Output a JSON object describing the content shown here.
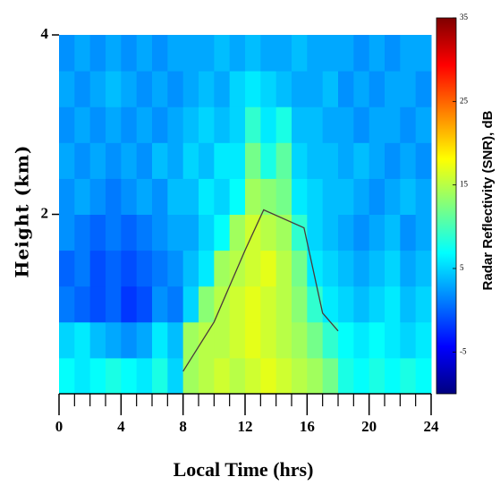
{
  "chart_data": {
    "type": "heatmap",
    "xlabel": "Local Time (hrs)",
    "ylabel": "Height (km)",
    "colorbar_label": "Radar Reflectivity (SNR), dB",
    "xbins": [
      0,
      1,
      2,
      3,
      4,
      5,
      6,
      7,
      8,
      9,
      10,
      11,
      12,
      13,
      14,
      15,
      16,
      17,
      18,
      19,
      20,
      21,
      22,
      23,
      24
    ],
    "ybins": [
      0,
      0.4,
      0.8,
      1.2,
      1.6,
      2.0,
      2.4,
      2.8,
      3.2,
      3.6,
      4.0
    ],
    "z": [
      [
        7,
        6,
        7,
        8,
        7,
        6,
        8,
        5,
        14,
        15,
        16,
        15,
        16,
        17,
        16,
        15,
        14,
        12,
        8,
        7,
        8,
        7,
        8,
        7
      ],
      [
        5,
        6,
        4,
        3,
        2,
        3,
        6,
        4,
        14,
        15,
        15,
        16,
        17,
        16,
        15,
        14,
        12,
        9,
        7,
        6,
        7,
        6,
        5,
        6
      ],
      [
        1,
        0,
        -1,
        0,
        -2,
        -1,
        2,
        1,
        5,
        13,
        15,
        16,
        17,
        16,
        15,
        13,
        9,
        6,
        5,
        4,
        5,
        6,
        4,
        5
      ],
      [
        0,
        1,
        -1,
        0,
        -1,
        0,
        1,
        2,
        4,
        6,
        14,
        15,
        16,
        17,
        15,
        12,
        6,
        5,
        4,
        3,
        4,
        5,
        3,
        4
      ],
      [
        2,
        1,
        0,
        1,
        0,
        1,
        2,
        3,
        3,
        5,
        7,
        14,
        16,
        15,
        14,
        9,
        5,
        4,
        3,
        2,
        3,
        4,
        2,
        3
      ],
      [
        2,
        3,
        2,
        1,
        2,
        3,
        2,
        4,
        4,
        6,
        5,
        7,
        14,
        13,
        12,
        6,
        5,
        4,
        4,
        3,
        2,
        3,
        4,
        3
      ],
      [
        3,
        2,
        3,
        2,
        3,
        2,
        4,
        3,
        5,
        4,
        6,
        6,
        12,
        8,
        11,
        5,
        4,
        4,
        3,
        4,
        3,
        2,
        3,
        2
      ],
      [
        2,
        3,
        2,
        3,
        2,
        3,
        2,
        3,
        4,
        5,
        4,
        5,
        9,
        6,
        8,
        4,
        4,
        3,
        3,
        2,
        3,
        3,
        2,
        3
      ],
      [
        3,
        2,
        3,
        4,
        3,
        2,
        3,
        2,
        3,
        4,
        3,
        5,
        6,
        5,
        4,
        3,
        3,
        4,
        2,
        3,
        2,
        3,
        3,
        2
      ],
      [
        2,
        3,
        2,
        3,
        2,
        3,
        2,
        3,
        3,
        3,
        4,
        3,
        4,
        3,
        3,
        4,
        3,
        3,
        3,
        2,
        3,
        2,
        3,
        3
      ]
    ],
    "colormap": [
      "#00007f",
      "#0000ff",
      "#0080ff",
      "#00ffff",
      "#7fff7f",
      "#ffff00",
      "#ff8000",
      "#ff0000",
      "#7f0000"
    ],
    "clim": [
      -10,
      35
    ],
    "cticks": [
      35,
      25,
      15,
      5,
      -5
    ],
    "xlim": [
      0,
      24
    ],
    "xticks": [
      0,
      4,
      8,
      12,
      16,
      20,
      24
    ],
    "xminorticks": [
      1,
      2,
      3,
      5,
      6,
      7,
      9,
      10,
      11,
      13,
      14,
      15,
      17,
      18,
      19,
      21,
      22,
      23
    ],
    "ylim": [
      0,
      4.05
    ],
    "yticks": [
      2,
      4
    ],
    "line": {
      "color": "#4a3a3a",
      "x": [
        8,
        10,
        12,
        13.2,
        15.8,
        17,
        18
      ],
      "y": [
        0.25,
        0.8,
        1.6,
        2.05,
        1.85,
        0.9,
        0.7
      ]
    }
  }
}
